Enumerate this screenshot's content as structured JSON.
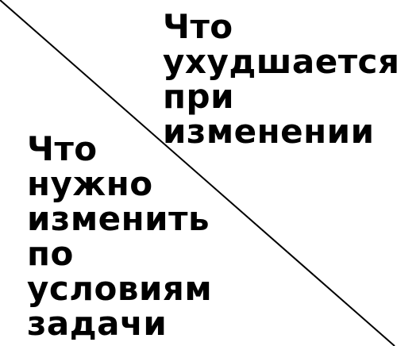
{
  "top_right_label": {
    "lines": [
      "Что",
      "ухудшается",
      "при",
      "изменении"
    ]
  },
  "bottom_left_label": {
    "lines": [
      "Что",
      "нужно",
      "изменить",
      "по",
      "условиям",
      "задачи"
    ]
  },
  "colors": {
    "background": "#ffffff",
    "text": "#000000",
    "line": "#000000"
  }
}
